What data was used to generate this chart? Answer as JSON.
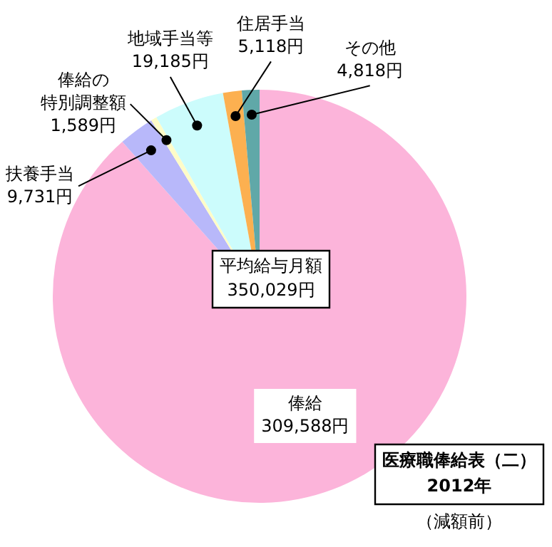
{
  "chart_data": {
    "type": "pie",
    "title": "医療職俸給表（二）",
    "subtitle": "2012年",
    "categories": [
      "俸給",
      "扶養手当",
      "俸給の特別調整額",
      "地域手当等",
      "住居手当",
      "その他"
    ],
    "values": [
      309588,
      9731,
      1589,
      19185,
      5118,
      4818
    ],
    "value_labels": [
      "309,588円",
      "9,731円",
      "1,589円",
      "19,185円",
      "5,118円",
      "4,818円"
    ],
    "colors": [
      "#fcb4da",
      "#b8b8fa",
      "#fffcc8",
      "#ccfcfc",
      "#fcb050",
      "#60a8a8"
    ],
    "annotations": [
      "平均給与月額 350,029円",
      "（減額前）"
    ],
    "legend": false
  }
}
